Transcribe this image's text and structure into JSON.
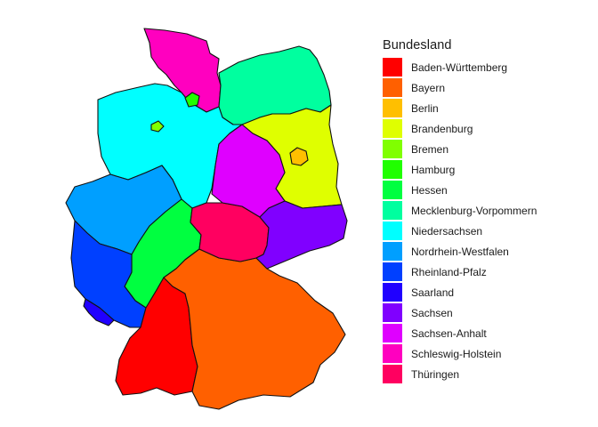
{
  "legend": {
    "title": "Bundesland"
  },
  "states": [
    {
      "id": "baden-wuerttemberg",
      "label": "Baden-Württemberg",
      "color": "#FF0000"
    },
    {
      "id": "bayern",
      "label": "Bayern",
      "color": "#FF6000"
    },
    {
      "id": "berlin",
      "label": "Berlin",
      "color": "#FFBF00"
    },
    {
      "id": "brandenburg",
      "label": "Brandenburg",
      "color": "#DFFF00"
    },
    {
      "id": "bremen",
      "label": "Bremen",
      "color": "#80FF00"
    },
    {
      "id": "hamburg",
      "label": "Hamburg",
      "color": "#20FF00"
    },
    {
      "id": "hessen",
      "label": "Hessen",
      "color": "#00FF40"
    },
    {
      "id": "mecklenburg-vorpommern",
      "label": "Mecklenburg-Vorpommern",
      "color": "#00FF9F"
    },
    {
      "id": "niedersachsen",
      "label": "Niedersachsen",
      "color": "#00FFFF"
    },
    {
      "id": "nordrhein-westfalen",
      "label": "Nordrhein-Westfalen",
      "color": "#009FFF"
    },
    {
      "id": "rheinland-pfalz",
      "label": "Rheinland-Pfalz",
      "color": "#0040FF"
    },
    {
      "id": "saarland",
      "label": "Saarland",
      "color": "#2000FF"
    },
    {
      "id": "sachsen",
      "label": "Sachsen",
      "color": "#8000FF"
    },
    {
      "id": "sachsen-anhalt",
      "label": "Sachsen-Anhalt",
      "color": "#DF00FF"
    },
    {
      "id": "schleswig-holstein",
      "label": "Schleswig-Holstein",
      "color": "#FF00BF"
    },
    {
      "id": "thueringen",
      "label": "Thüringen",
      "color": "#FF0060"
    }
  ]
}
